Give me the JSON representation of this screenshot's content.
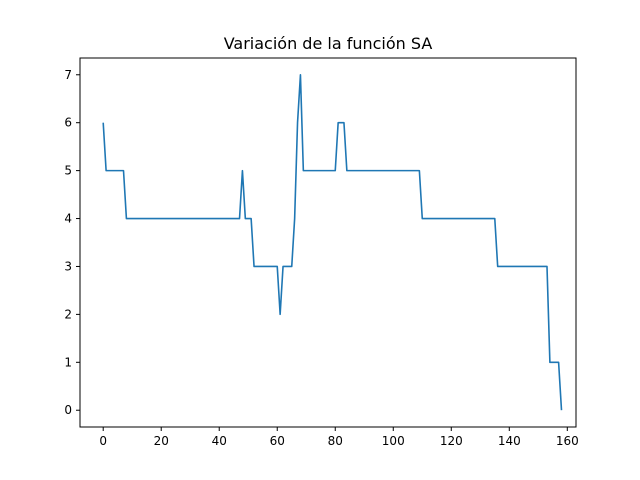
{
  "chart_data": {
    "type": "line",
    "title": "Variación de la función SA",
    "xlabel": "",
    "ylabel": "",
    "xlim": [
      -8,
      163
    ],
    "ylim": [
      -0.35,
      7.35
    ],
    "x_ticks": [
      0,
      20,
      40,
      60,
      80,
      100,
      120,
      140,
      160
    ],
    "y_ticks": [
      0,
      1,
      2,
      3,
      4,
      5,
      6,
      7
    ],
    "grid": false,
    "series": [
      {
        "color": "#1f77b4",
        "points": [
          [
            0,
            6
          ],
          [
            1,
            5
          ],
          [
            7,
            5
          ],
          [
            8,
            4
          ],
          [
            47,
            4
          ],
          [
            48,
            5
          ],
          [
            49,
            4
          ],
          [
            51,
            4
          ],
          [
            52,
            3
          ],
          [
            60,
            3
          ],
          [
            61,
            2
          ],
          [
            62,
            3
          ],
          [
            65,
            3
          ],
          [
            66,
            4
          ],
          [
            67,
            6
          ],
          [
            68,
            7
          ],
          [
            69,
            5
          ],
          [
            80,
            5
          ],
          [
            81,
            6
          ],
          [
            83,
            6
          ],
          [
            84,
            5
          ],
          [
            109,
            5
          ],
          [
            110,
            4
          ],
          [
            135,
            4
          ],
          [
            136,
            3
          ],
          [
            153,
            3
          ],
          [
            154,
            1
          ],
          [
            157,
            1
          ],
          [
            158,
            0
          ]
        ]
      }
    ]
  }
}
